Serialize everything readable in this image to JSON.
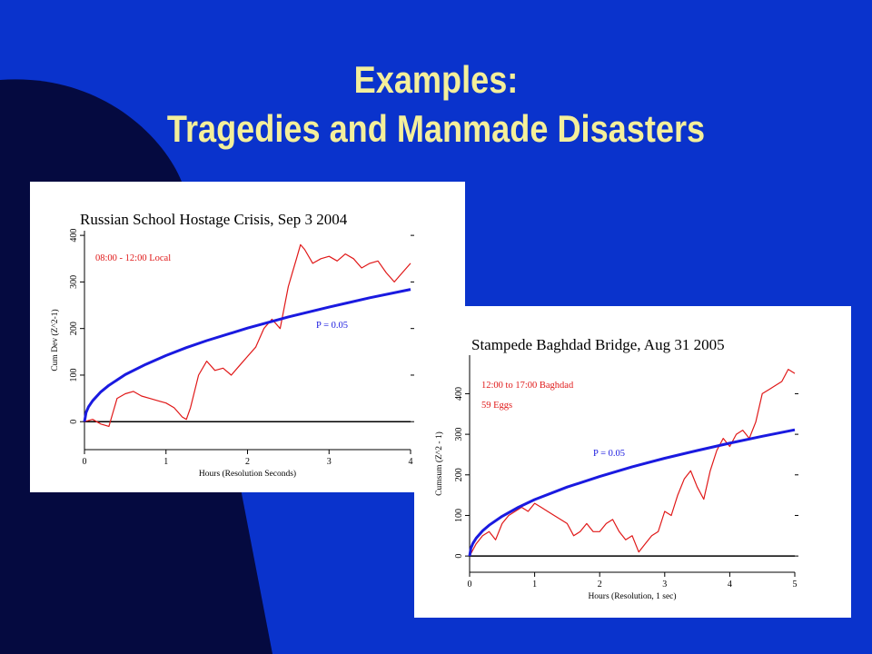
{
  "slide": {
    "title_line1": "Examples:",
    "title_line2": "Tragedies and Manmade Disasters",
    "colors": {
      "background": "#0a33cc",
      "title": "#f4ef9a",
      "deco_dark": "#050a40"
    }
  },
  "chart_data": [
    {
      "type": "line",
      "title": "Russian School Hostage Crisis, Sep 3 2004",
      "xlabel": "Hours (Resolution Seconds)",
      "ylabel": "Cum Dev (Z^2-1)",
      "annotation": "08:00 - 12:00 Local",
      "xlim": [
        0,
        4
      ],
      "ylim": [
        -60,
        410
      ],
      "xticks": [
        0,
        1,
        2,
        3,
        4
      ],
      "yticks": [
        0,
        100,
        200,
        300,
        400
      ],
      "series": [
        {
          "color": "#e01818",
          "x": [
            0,
            0.1,
            0.2,
            0.3,
            0.35,
            0.4,
            0.5,
            0.6,
            0.7,
            0.8,
            0.9,
            1.0,
            1.1,
            1.2,
            1.25,
            1.3,
            1.4,
            1.5,
            1.6,
            1.7,
            1.8,
            1.9,
            2.0,
            2.1,
            2.2,
            2.3,
            2.4,
            2.5,
            2.55,
            2.6,
            2.65,
            2.7,
            2.8,
            2.9,
            3.0,
            3.1,
            3.2,
            3.3,
            3.4,
            3.5,
            3.6,
            3.7,
            3.8,
            3.9,
            4.0
          ],
          "y": [
            0,
            5,
            -5,
            -10,
            20,
            50,
            60,
            65,
            55,
            50,
            45,
            40,
            30,
            10,
            5,
            30,
            100,
            130,
            110,
            115,
            100,
            120,
            140,
            160,
            200,
            220,
            200,
            290,
            320,
            350,
            380,
            370,
            340,
            350,
            355,
            345,
            360,
            350,
            330,
            340,
            345,
            320,
            300,
            320,
            340
          ]
        },
        {
          "name": "P = 0.05",
          "color": "#1a1ae0",
          "x": [
            0,
            0.02,
            0.05,
            0.1,
            0.2,
            0.3,
            0.5,
            0.75,
            1.0,
            1.25,
            1.5,
            2.0,
            2.5,
            3.0,
            3.5,
            4.0
          ],
          "y": [
            0,
            20,
            32,
            45,
            64,
            78,
            101,
            123,
            142,
            159,
            174,
            201,
            225,
            246,
            266,
            284
          ]
        }
      ]
    },
    {
      "type": "line",
      "title": "Stampede Baghdad Bridge, Aug 31 2005",
      "xlabel": "Hours (Resolution, 1 sec)",
      "ylabel": "Cumsum (Z^2 - 1)",
      "annotation": "12:00 to 17:00 Baghdad",
      "annotation2": "59 Eggs",
      "xlim": [
        0,
        5
      ],
      "ylim": [
        -40,
        495
      ],
      "xticks": [
        0,
        1,
        2,
        3,
        4,
        5
      ],
      "yticks": [
        0,
        100,
        200,
        300,
        400
      ],
      "series": [
        {
          "color": "#e01818",
          "x": [
            0,
            0.1,
            0.2,
            0.3,
            0.4,
            0.5,
            0.6,
            0.7,
            0.8,
            0.9,
            1.0,
            1.1,
            1.2,
            1.3,
            1.4,
            1.5,
            1.6,
            1.7,
            1.8,
            1.9,
            2.0,
            2.1,
            2.2,
            2.3,
            2.4,
            2.5,
            2.6,
            2.7,
            2.8,
            2.9,
            3.0,
            3.1,
            3.2,
            3.3,
            3.4,
            3.5,
            3.6,
            3.7,
            3.8,
            3.9,
            4.0,
            4.1,
            4.2,
            4.3,
            4.4,
            4.5,
            4.6,
            4.7,
            4.8,
            4.9,
            5.0
          ],
          "y": [
            0,
            30,
            50,
            60,
            40,
            80,
            100,
            110,
            120,
            110,
            130,
            120,
            110,
            100,
            90,
            80,
            50,
            60,
            80,
            60,
            60,
            80,
            90,
            60,
            40,
            50,
            10,
            30,
            50,
            60,
            110,
            100,
            150,
            190,
            210,
            170,
            140,
            210,
            260,
            290,
            270,
            300,
            310,
            290,
            330,
            400,
            410,
            420,
            430,
            460,
            450
          ]
        },
        {
          "name": "P = 0.05",
          "color": "#1a1ae0",
          "x": [
            0,
            0.02,
            0.05,
            0.1,
            0.2,
            0.3,
            0.5,
            0.75,
            1.0,
            1.5,
            2.0,
            2.5,
            3.0,
            3.5,
            4.0,
            4.5,
            5.0
          ],
          "y": [
            0,
            19,
            31,
            44,
            62,
            76,
            98,
            120,
            139,
            170,
            196,
            220,
            241,
            260,
            278,
            295,
            311
          ]
        }
      ]
    }
  ]
}
